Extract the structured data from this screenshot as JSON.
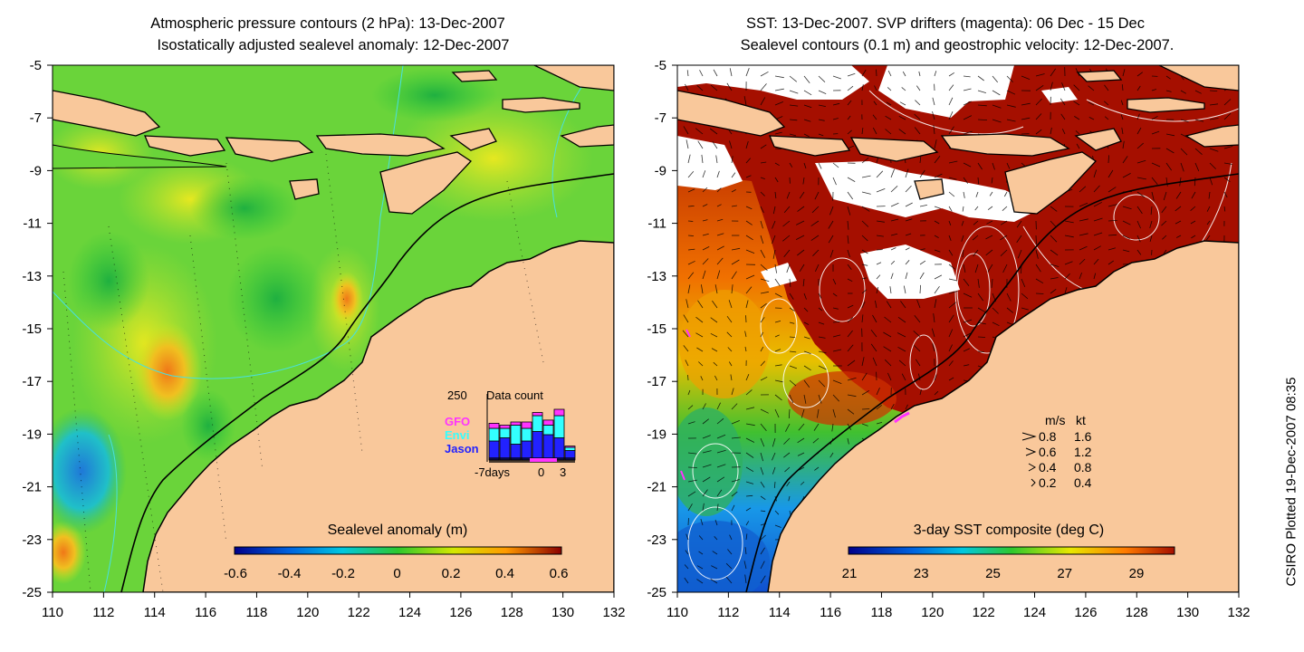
{
  "left_panel": {
    "title_line1": "Atmospheric pressure contours (2 hPa): 13-Dec-2007",
    "title_line2": "Isostatically adjusted sealevel anomaly: 12-Dec-2007",
    "colorbar_label": "Sealevel anomaly (m)",
    "colorbar_ticks": [
      "-0.6",
      "-0.4",
      "-0.2",
      "0",
      "0.2",
      "0.4",
      "0.6"
    ],
    "inset": {
      "max_label": "250",
      "title": "Data count",
      "legend": [
        {
          "name": "GFO",
          "color": "#ff33ff"
        },
        {
          "name": "Envi",
          "color": "#33ffff"
        },
        {
          "name": "Jason",
          "color": "#2222ff"
        }
      ],
      "x_ticks": [
        "-7days",
        "0",
        "3"
      ]
    }
  },
  "right_panel": {
    "title_line1": "SST: 13-Dec-2007. SVP drifters (magenta): 06 Dec - 15 Dec",
    "title_line2": "Sealevel contours (0.1 m) and geostrophic velocity: 12-Dec-2007.",
    "colorbar_label": "3-day SST composite (deg C)",
    "colorbar_ticks": [
      "21",
      "23",
      "25",
      "27",
      "29"
    ],
    "velocity_legend": {
      "header_ms": "m/s",
      "header_kt": "kt",
      "rows": [
        {
          "ms": "0.8",
          "kt": "1.6"
        },
        {
          "ms": "0.6",
          "kt": "1.2"
        },
        {
          "ms": "0.4",
          "kt": "0.8"
        },
        {
          "ms": "0.2",
          "kt": "0.4"
        }
      ]
    }
  },
  "axes": {
    "x_ticks": [
      "110",
      "112",
      "114",
      "116",
      "118",
      "120",
      "122",
      "124",
      "126",
      "128",
      "130",
      "132"
    ],
    "y_ticks": [
      "-5",
      "-7",
      "-9",
      "-11",
      "-13",
      "-15",
      "-17",
      "-19",
      "-21",
      "-23",
      "-25"
    ],
    "lon_range": [
      110,
      132
    ],
    "lat_range": [
      -25,
      -5
    ]
  },
  "credit": "CSIRO Plotted 19-Dec-2007 08:35",
  "colors": {
    "land": "#f9c89b",
    "ocean_green": "#5fd33a",
    "sst_hot": "#a50f00",
    "cloud": "#ffffff",
    "contour": "#48e0e0"
  }
}
